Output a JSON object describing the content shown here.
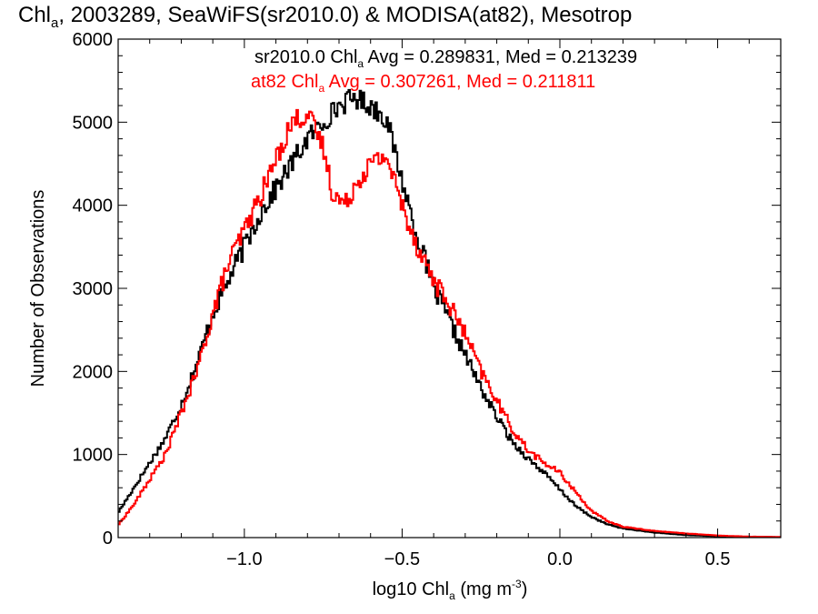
{
  "chart_data": {
    "type": "line",
    "step": true,
    "title": {
      "main": "Chl",
      "sub": "a",
      "rest": ", 2003289, SeaWiFS(sr2010.0) & MODISA(at82), Mesotrop"
    },
    "xlabel": {
      "pre": "log10 Chl",
      "sub": "a",
      "mid": " (mg m",
      "sup": "-3",
      "post": ")"
    },
    "ylabel": "Number of Observations",
    "xlim": [
      -1.4,
      0.7
    ],
    "ylim": [
      0,
      6000
    ],
    "x_ticks": [
      -1.0,
      -0.5,
      0.0,
      0.5
    ],
    "x_tick_labels": [
      "−1.0",
      "−0.5",
      "0.0",
      "0.5"
    ],
    "x_minor_step": 0.1,
    "y_ticks": [
      0,
      1000,
      2000,
      3000,
      4000,
      5000,
      6000
    ],
    "y_tick_labels": [
      "0",
      "1000",
      "2000",
      "3000",
      "4000",
      "5000",
      "6000"
    ],
    "y_minor_step": 200,
    "grid": false,
    "series": [
      {
        "name": "sr2010.0",
        "color": "#000000",
        "legend": {
          "pre": "sr2010.0 Chl",
          "sub": "a",
          "post": " Avg = 0.289831, Med = 0.213239"
        },
        "points": [
          [
            -1.4,
            300
          ],
          [
            -1.35,
            600
          ],
          [
            -1.3,
            900
          ],
          [
            -1.25,
            1200
          ],
          [
            -1.2,
            1600
          ],
          [
            -1.15,
            2100
          ],
          [
            -1.1,
            2700
          ],
          [
            -1.05,
            3100
          ],
          [
            -1.0,
            3500
          ],
          [
            -0.95,
            3900
          ],
          [
            -0.9,
            4200
          ],
          [
            -0.85,
            4500
          ],
          [
            -0.8,
            4800
          ],
          [
            -0.75,
            5000
          ],
          [
            -0.7,
            5200
          ],
          [
            -0.65,
            5300
          ],
          [
            -0.6,
            5200
          ],
          [
            -0.55,
            5050
          ],
          [
            -0.5,
            4300
          ],
          [
            -0.45,
            3600
          ],
          [
            -0.4,
            3000
          ],
          [
            -0.35,
            2600
          ],
          [
            -0.3,
            2200
          ],
          [
            -0.25,
            1800
          ],
          [
            -0.2,
            1450
          ],
          [
            -0.15,
            1150
          ],
          [
            -0.1,
            950
          ],
          [
            -0.05,
            780
          ],
          [
            0.0,
            580
          ],
          [
            0.05,
            380
          ],
          [
            0.1,
            250
          ],
          [
            0.15,
            160
          ],
          [
            0.2,
            110
          ],
          [
            0.3,
            60
          ],
          [
            0.4,
            30
          ],
          [
            0.5,
            15
          ],
          [
            0.6,
            10
          ],
          [
            0.7,
            5
          ]
        ]
      },
      {
        "name": "at82",
        "color": "#ff0000",
        "legend": {
          "pre": "at82 Chl",
          "sub": "a",
          "post": " Avg = 0.307261, Med = 0.211811"
        },
        "points": [
          [
            -1.4,
            150
          ],
          [
            -1.35,
            400
          ],
          [
            -1.3,
            700
          ],
          [
            -1.25,
            1000
          ],
          [
            -1.2,
            1500
          ],
          [
            -1.15,
            2000
          ],
          [
            -1.1,
            2700
          ],
          [
            -1.05,
            3300
          ],
          [
            -1.0,
            3700
          ],
          [
            -0.95,
            4100
          ],
          [
            -0.9,
            4550
          ],
          [
            -0.85,
            5000
          ],
          [
            -0.8,
            5100
          ],
          [
            -0.75,
            4700
          ],
          [
            -0.72,
            4150
          ],
          [
            -0.68,
            4000
          ],
          [
            -0.65,
            4250
          ],
          [
            -0.6,
            4500
          ],
          [
            -0.55,
            4600
          ],
          [
            -0.5,
            4000
          ],
          [
            -0.45,
            3500
          ],
          [
            -0.4,
            3100
          ],
          [
            -0.35,
            2800
          ],
          [
            -0.3,
            2450
          ],
          [
            -0.25,
            2000
          ],
          [
            -0.2,
            1650
          ],
          [
            -0.15,
            1300
          ],
          [
            -0.1,
            1050
          ],
          [
            -0.05,
            900
          ],
          [
            0.0,
            780
          ],
          [
            0.05,
            550
          ],
          [
            0.1,
            320
          ],
          [
            0.15,
            200
          ],
          [
            0.2,
            130
          ],
          [
            0.3,
            80
          ],
          [
            0.4,
            50
          ],
          [
            0.5,
            25
          ],
          [
            0.6,
            12
          ],
          [
            0.7,
            8
          ]
        ]
      }
    ]
  }
}
